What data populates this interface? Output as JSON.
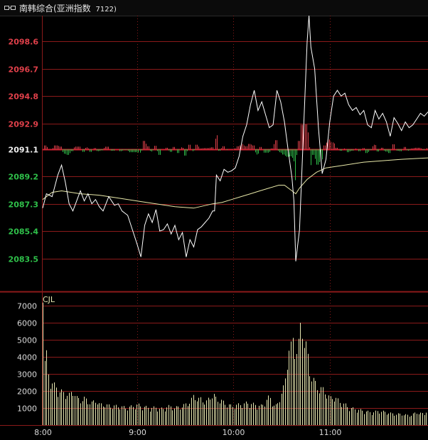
{
  "header": {
    "title": "南韩综合(亚洲指数",
    "code": "7122)",
    "icon": "link-icon"
  },
  "colors": {
    "up": "#e0404a",
    "down": "#2fc04a",
    "base": "#f0f0f0",
    "grid": "#8b1a1a",
    "price_line": "#ffffff",
    "avg_line": "#e8e8a8",
    "volume": "#e6e6b0",
    "volume_label": "#e6e6b0"
  },
  "chart_data": [
    {
      "type": "line",
      "name": "price",
      "y_ticks": [
        {
          "label": "2098.6",
          "value": 2098.6,
          "dir": "up"
        },
        {
          "label": "2096.7",
          "value": 2096.7,
          "dir": "up"
        },
        {
          "label": "2094.8",
          "value": 2094.8,
          "dir": "up"
        },
        {
          "label": "2092.9",
          "value": 2092.9,
          "dir": "up"
        },
        {
          "label": "2091.1",
          "value": 2091.1,
          "dir": "base"
        },
        {
          "label": "2089.2",
          "value": 2089.2,
          "dir": "down"
        },
        {
          "label": "2087.3",
          "value": 2087.3,
          "dir": "down"
        },
        {
          "label": "2085.4",
          "value": 2085.4,
          "dir": "down"
        },
        {
          "label": "2083.5",
          "value": 2083.5,
          "dir": "down"
        }
      ],
      "base": 2091.1,
      "ylim": [
        2081.2,
        2100.4
      ],
      "xlim": [
        0,
        204
      ],
      "x_ticks": [
        {
          "label": "8:00",
          "value": 0
        },
        {
          "label": "9:00",
          "value": 50
        },
        {
          "label": "10:00",
          "value": 101
        },
        {
          "label": "11:00",
          "value": 152
        }
      ],
      "price": [
        [
          0,
          2087.0
        ],
        [
          2,
          2088.0
        ],
        [
          5,
          2087.8
        ],
        [
          8,
          2089.3
        ],
        [
          10,
          2090.0
        ],
        [
          12,
          2088.8
        ],
        [
          14,
          2087.3
        ],
        [
          16,
          2086.8
        ],
        [
          18,
          2087.5
        ],
        [
          20,
          2088.2
        ],
        [
          22,
          2087.5
        ],
        [
          24,
          2088.0
        ],
        [
          26,
          2087.3
        ],
        [
          28,
          2087.6
        ],
        [
          30,
          2087.1
        ],
        [
          32,
          2086.8
        ],
        [
          35,
          2087.8
        ],
        [
          38,
          2087.2
        ],
        [
          40,
          2087.3
        ],
        [
          42,
          2086.8
        ],
        [
          45,
          2086.5
        ],
        [
          48,
          2085.3
        ],
        [
          50,
          2084.5
        ],
        [
          52,
          2083.6
        ],
        [
          54,
          2085.8
        ],
        [
          56,
          2086.6
        ],
        [
          58,
          2086.0
        ],
        [
          60,
          2086.9
        ],
        [
          62,
          2085.4
        ],
        [
          64,
          2085.5
        ],
        [
          66,
          2085.9
        ],
        [
          68,
          2085.2
        ],
        [
          70,
          2085.8
        ],
        [
          72,
          2084.8
        ],
        [
          74,
          2085.3
        ],
        [
          76,
          2083.6
        ],
        [
          78,
          2084.8
        ],
        [
          80,
          2084.3
        ],
        [
          82,
          2085.5
        ],
        [
          84,
          2085.7
        ],
        [
          86,
          2086.0
        ],
        [
          88,
          2086.3
        ],
        [
          90,
          2086.8
        ],
        [
          91,
          2086.8
        ],
        [
          92,
          2089.3
        ],
        [
          94,
          2088.9
        ],
        [
          96,
          2089.7
        ],
        [
          98,
          2089.5
        ],
        [
          100,
          2089.6
        ],
        [
          102,
          2089.8
        ],
        [
          104,
          2090.6
        ],
        [
          106,
          2092.0
        ],
        [
          108,
          2092.8
        ],
        [
          110,
          2094.2
        ],
        [
          112,
          2095.2
        ],
        [
          114,
          2093.8
        ],
        [
          116,
          2094.4
        ],
        [
          118,
          2093.5
        ],
        [
          120,
          2092.6
        ],
        [
          122,
          2092.8
        ],
        [
          124,
          2095.2
        ],
        [
          126,
          2094.4
        ],
        [
          128,
          2093.0
        ],
        [
          130,
          2091.0
        ],
        [
          132,
          2089.1
        ],
        [
          133,
          2087.5
        ],
        [
          134,
          2083.3
        ],
        [
          136,
          2085.5
        ],
        [
          138,
          2092.0
        ],
        [
          140,
          2098.6
        ],
        [
          141,
          2100.4
        ],
        [
          142,
          2098.2
        ],
        [
          144,
          2096.7
        ],
        [
          146,
          2092.6
        ],
        [
          148,
          2089.4
        ],
        [
          150,
          2090.4
        ],
        [
          152,
          2093.0
        ],
        [
          154,
          2094.8
        ],
        [
          156,
          2095.2
        ],
        [
          158,
          2094.8
        ],
        [
          160,
          2095.0
        ],
        [
          162,
          2094.2
        ],
        [
          164,
          2093.8
        ],
        [
          166,
          2094.0
        ],
        [
          168,
          2093.5
        ],
        [
          170,
          2093.8
        ],
        [
          172,
          2092.8
        ],
        [
          174,
          2092.6
        ],
        [
          176,
          2093.8
        ],
        [
          178,
          2093.2
        ],
        [
          180,
          2093.6
        ],
        [
          182,
          2093.0
        ],
        [
          184,
          2092.0
        ],
        [
          186,
          2093.3
        ],
        [
          188,
          2092.9
        ],
        [
          190,
          2092.4
        ],
        [
          192,
          2093.0
        ],
        [
          194,
          2092.6
        ],
        [
          196,
          2092.8
        ],
        [
          198,
          2093.2
        ],
        [
          200,
          2093.6
        ],
        [
          202,
          2093.4
        ],
        [
          204,
          2093.7
        ]
      ],
      "avg": [
        [
          0,
          2087.6
        ],
        [
          5,
          2088.1
        ],
        [
          10,
          2088.2
        ],
        [
          20,
          2088.0
        ],
        [
          30,
          2087.9
        ],
        [
          40,
          2087.7
        ],
        [
          50,
          2087.5
        ],
        [
          60,
          2087.3
        ],
        [
          70,
          2087.1
        ],
        [
          80,
          2087.0
        ],
        [
          90,
          2087.3
        ],
        [
          95,
          2087.4
        ],
        [
          100,
          2087.6
        ],
        [
          105,
          2087.8
        ],
        [
          110,
          2088.0
        ],
        [
          115,
          2088.2
        ],
        [
          120,
          2088.4
        ],
        [
          125,
          2088.6
        ],
        [
          128,
          2088.6
        ],
        [
          132,
          2088.2
        ],
        [
          134,
          2088.0
        ],
        [
          136,
          2088.4
        ],
        [
          140,
          2089.0
        ],
        [
          145,
          2089.5
        ],
        [
          150,
          2089.8
        ],
        [
          160,
          2090.0
        ],
        [
          170,
          2090.2
        ],
        [
          180,
          2090.3
        ],
        [
          190,
          2090.4
        ],
        [
          204,
          2090.5
        ]
      ]
    },
    {
      "type": "bar",
      "name": "volume",
      "label": "CJL",
      "ylim": [
        0,
        7600
      ],
      "y_ticks": [
        {
          "label": "7000",
          "value": 7000
        },
        {
          "label": "6000",
          "value": 6000
        },
        {
          "label": "5000",
          "value": 5000
        },
        {
          "label": "4000",
          "value": 4000
        },
        {
          "label": "3000",
          "value": 3000
        },
        {
          "label": "2000",
          "value": 2000
        },
        {
          "label": "1000",
          "value": 1000
        }
      ],
      "xlim": [
        0,
        204
      ],
      "anchors": [
        [
          0,
          7200
        ],
        [
          1,
          4100
        ],
        [
          2,
          4400
        ],
        [
          3,
          3200
        ],
        [
          4,
          2900
        ],
        [
          6,
          2500
        ],
        [
          8,
          2200
        ],
        [
          10,
          2100
        ],
        [
          12,
          2000
        ],
        [
          14,
          1900
        ],
        [
          16,
          2200
        ],
        [
          18,
          1700
        ],
        [
          20,
          1600
        ],
        [
          22,
          1700
        ],
        [
          24,
          1500
        ],
        [
          26,
          1400
        ],
        [
          28,
          1600
        ],
        [
          30,
          1300
        ],
        [
          32,
          1300
        ],
        [
          36,
          1200
        ],
        [
          40,
          1200
        ],
        [
          44,
          1100
        ],
        [
          48,
          1200
        ],
        [
          50,
          1300
        ],
        [
          52,
          1200
        ],
        [
          56,
          1100
        ],
        [
          60,
          1100
        ],
        [
          64,
          1000
        ],
        [
          66,
          1200
        ],
        [
          70,
          1100
        ],
        [
          74,
          1200
        ],
        [
          78,
          1500
        ],
        [
          80,
          1900
        ],
        [
          82,
          1600
        ],
        [
          84,
          1700
        ],
        [
          86,
          1400
        ],
        [
          88,
          1700
        ],
        [
          90,
          2000
        ],
        [
          92,
          1600
        ],
        [
          94,
          1600
        ],
        [
          96,
          1400
        ],
        [
          100,
          1200
        ],
        [
          104,
          1300
        ],
        [
          108,
          1400
        ],
        [
          112,
          1300
        ],
        [
          116,
          1200
        ],
        [
          118,
          1600
        ],
        [
          120,
          1800
        ],
        [
          122,
          1300
        ],
        [
          124,
          1200
        ],
        [
          126,
          2000
        ],
        [
          128,
          2500
        ],
        [
          129,
          3500
        ],
        [
          130,
          5300
        ],
        [
          131,
          4600
        ],
        [
          132,
          5600
        ],
        [
          133,
          4800
        ],
        [
          134,
          5000
        ],
        [
          135,
          4700
        ],
        [
          136,
          6000
        ],
        [
          137,
          6600
        ],
        [
          138,
          5500
        ],
        [
          139,
          5200
        ],
        [
          140,
          4600
        ],
        [
          141,
          3600
        ],
        [
          142,
          3200
        ],
        [
          143,
          2900
        ],
        [
          144,
          2700
        ],
        [
          146,
          2300
        ],
        [
          148,
          2300
        ],
        [
          150,
          2000
        ],
        [
          152,
          1700
        ],
        [
          154,
          1800
        ],
        [
          156,
          1600
        ],
        [
          158,
          1400
        ],
        [
          160,
          1300
        ],
        [
          162,
          1100
        ],
        [
          166,
          1000
        ],
        [
          170,
          900
        ],
        [
          174,
          800
        ],
        [
          178,
          900
        ],
        [
          182,
          800
        ],
        [
          186,
          700
        ],
        [
          190,
          700
        ],
        [
          194,
          600
        ],
        [
          198,
          800
        ],
        [
          202,
          700
        ],
        [
          204,
          1100
        ]
      ]
    }
  ]
}
